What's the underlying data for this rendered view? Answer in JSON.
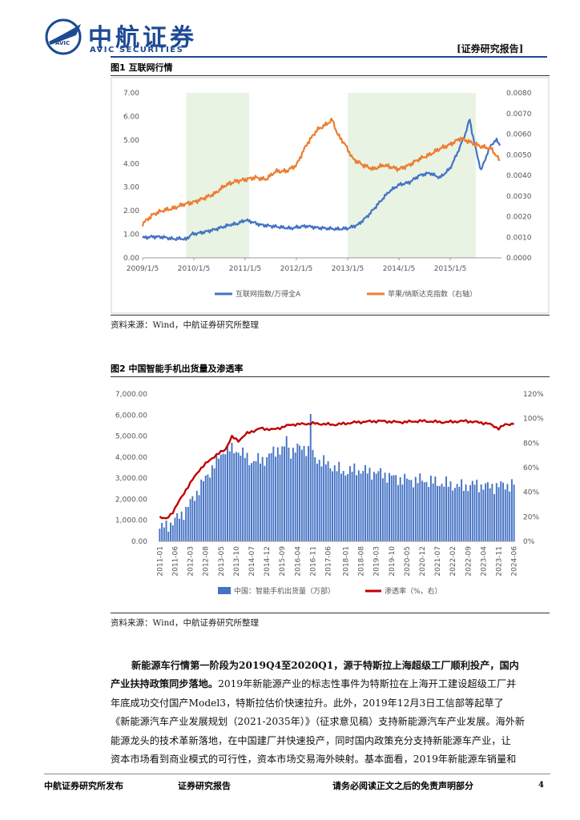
{
  "header": {
    "logo_cn": "中航证券",
    "logo_en": "AVIC SECURITIES",
    "badge": "AVIC",
    "report_type": "[证券研究报告]"
  },
  "figure1": {
    "title": "图1  互联网行情",
    "source": "资料来源：Wind，中航证券研究所整理",
    "chart_data": {
      "type": "line",
      "x_tick_labels": [
        "2009/1/5",
        "2010/1/5",
        "2011/1/5",
        "2012/1/5",
        "2013/1/5",
        "2014/1/5",
        "2015/1/5"
      ],
      "y_left_ticks": [
        "0.00",
        "1.00",
        "2.00",
        "3.00",
        "4.00",
        "5.00",
        "6.00",
        "7.00"
      ],
      "y_right_ticks": [
        "0.0000",
        "0.0010",
        "0.0020",
        "0.0030",
        "0.0040",
        "0.0050",
        "0.0060",
        "0.0070",
        "0.0080"
      ],
      "ylim_left": [
        0,
        7
      ],
      "ylim_right": [
        0,
        0.008
      ],
      "shaded_periods": [
        [
          "2009/11",
          "2011/1"
        ],
        [
          "2013/1",
          "2015/6"
        ]
      ],
      "series": [
        {
          "name": "互联网指数/万得全A",
          "axis": "left",
          "color": "#4472c4",
          "points": [
            [
              2009.0,
              0.85
            ],
            [
              2009.2,
              0.9
            ],
            [
              2009.4,
              0.88
            ],
            [
              2009.6,
              0.8
            ],
            [
              2009.75,
              0.82
            ],
            [
              2009.85,
              0.78
            ],
            [
              2009.95,
              1.0
            ],
            [
              2010.1,
              1.05
            ],
            [
              2010.25,
              1.12
            ],
            [
              2010.4,
              1.2
            ],
            [
              2010.55,
              1.3
            ],
            [
              2010.7,
              1.4
            ],
            [
              2010.85,
              1.45
            ],
            [
              2011.0,
              1.6
            ],
            [
              2011.1,
              1.55
            ],
            [
              2011.3,
              1.4
            ],
            [
              2011.5,
              1.35
            ],
            [
              2011.7,
              1.3
            ],
            [
              2011.9,
              1.25
            ],
            [
              2012.0,
              1.3
            ],
            [
              2012.2,
              1.35
            ],
            [
              2012.4,
              1.28
            ],
            [
              2012.6,
              1.25
            ],
            [
              2012.8,
              1.22
            ],
            [
              2013.0,
              1.25
            ],
            [
              2013.2,
              1.4
            ],
            [
              2013.4,
              1.8
            ],
            [
              2013.6,
              2.3
            ],
            [
              2013.8,
              2.8
            ],
            [
              2014.0,
              3.1
            ],
            [
              2014.2,
              3.2
            ],
            [
              2014.4,
              3.5
            ],
            [
              2014.6,
              3.6
            ],
            [
              2014.8,
              3.4
            ],
            [
              2015.0,
              3.8
            ],
            [
              2015.15,
              4.5
            ],
            [
              2015.3,
              5.3
            ],
            [
              2015.38,
              5.9
            ],
            [
              2015.42,
              5.4
            ],
            [
              2015.5,
              4.6
            ],
            [
              2015.6,
              3.7
            ],
            [
              2015.7,
              4.3
            ],
            [
              2015.8,
              4.8
            ],
            [
              2015.9,
              5.0
            ],
            [
              2015.97,
              4.8
            ]
          ]
        },
        {
          "name": "苹果/纳斯达克指数（右轴）",
          "axis": "right",
          "color": "#ed7d31",
          "points": [
            [
              2009.0,
              0.00165
            ],
            [
              2009.2,
              0.0021
            ],
            [
              2009.4,
              0.0023
            ],
            [
              2009.6,
              0.0024
            ],
            [
              2009.8,
              0.0026
            ],
            [
              2010.0,
              0.0027
            ],
            [
              2010.2,
              0.0029
            ],
            [
              2010.4,
              0.0031
            ],
            [
              2010.6,
              0.0035
            ],
            [
              2010.8,
              0.0037
            ],
            [
              2011.0,
              0.0038
            ],
            [
              2011.2,
              0.0039
            ],
            [
              2011.4,
              0.0038
            ],
            [
              2011.6,
              0.0042
            ],
            [
              2011.8,
              0.0042
            ],
            [
              2012.0,
              0.0045
            ],
            [
              2012.2,
              0.0055
            ],
            [
              2012.4,
              0.0062
            ],
            [
              2012.6,
              0.0065
            ],
            [
              2012.7,
              0.0067
            ],
            [
              2012.8,
              0.006
            ],
            [
              2012.95,
              0.0055
            ],
            [
              2013.1,
              0.0048
            ],
            [
              2013.3,
              0.0045
            ],
            [
              2013.5,
              0.0043
            ],
            [
              2013.7,
              0.0045
            ],
            [
              2014.0,
              0.0043
            ],
            [
              2014.2,
              0.0045
            ],
            [
              2014.4,
              0.0048
            ],
            [
              2014.6,
              0.005
            ],
            [
              2014.8,
              0.0053
            ],
            [
              2015.0,
              0.0055
            ],
            [
              2015.2,
              0.0058
            ],
            [
              2015.4,
              0.0056
            ],
            [
              2015.6,
              0.0054
            ],
            [
              2015.8,
              0.0053
            ],
            [
              2015.97,
              0.0047
            ]
          ]
        }
      ],
      "legend": "bottom"
    }
  },
  "figure2": {
    "title": "图2  中国智能手机出货量及渗透率",
    "source": "资料来源：Wind，中航证券研究所整理",
    "chart_data": {
      "type": "bar",
      "x_tick_labels": [
        "2011-01",
        "2012-03",
        "2013-05",
        "2014-07",
        "2015-09",
        "2016-11",
        "2018-01",
        "2019-03",
        "2020-05",
        "2021-07",
        "2022-09",
        "2023-11",
        "2011-06",
        "2012-08",
        "2013-10",
        "2014-12",
        "2016-04",
        "2017-06",
        "2018-08",
        "2019-10",
        "2020-12",
        "2022-02",
        "2023-04",
        "2024-06"
      ],
      "x_tick_order": [
        "2011-01",
        "2011-06",
        "2012-03",
        "2012-08",
        "2013-05",
        "2013-10",
        "2014-07",
        "2014-12",
        "2015-09",
        "2016-04",
        "2016-11",
        "2017-06",
        "2018-01",
        "2018-08",
        "2019-03",
        "2019-10",
        "2020-05",
        "2020-12",
        "2021-07",
        "2022-02",
        "2022-09",
        "2023-04",
        "2023-11",
        "2024-06"
      ],
      "y_left_ticks": [
        "0.00",
        "1,000.00",
        "2,000.00",
        "3,000.00",
        "4,000.00",
        "5,000.00",
        "6,000.00",
        "7,000.00"
      ],
      "y_right_ticks": [
        "0%",
        "20%",
        "40%",
        "60%",
        "80%",
        "100%",
        "120%"
      ],
      "ylim_left": [
        0,
        7000
      ],
      "ylim_right": [
        0,
        1.2
      ],
      "series": [
        {
          "name": "中国：智能手机出货量（万部）",
          "axis": "left",
          "color": "#4472c4",
          "profile": [
            [
              0,
              600
            ],
            [
              6,
              900
            ],
            [
              12,
              1500
            ],
            [
              18,
              2500
            ],
            [
              24,
              3500
            ],
            [
              30,
              4400
            ],
            [
              36,
              4300
            ],
            [
              42,
              3800
            ],
            [
              48,
              3900
            ],
            [
              54,
              4400
            ],
            [
              60,
              4300
            ],
            [
              66,
              4500
            ],
            [
              72,
              3900
            ],
            [
              78,
              3600
            ],
            [
              84,
              3300
            ],
            [
              90,
              3400
            ],
            [
              96,
              3300
            ],
            [
              102,
              3200
            ],
            [
              108,
              3000
            ],
            [
              114,
              2900
            ],
            [
              120,
              2900
            ],
            [
              126,
              2800
            ],
            [
              132,
              2700
            ],
            [
              138,
              2600
            ],
            [
              144,
              2700
            ],
            [
              150,
              2600
            ],
            [
              162,
              2700
            ]
          ]
        },
        {
          "name": "渗透率（%，右）",
          "axis": "right",
          "color": "#c00000",
          "profile": [
            [
              0,
              0.2
            ],
            [
              3,
              0.18
            ],
            [
              6,
              0.24
            ],
            [
              12,
              0.42
            ],
            [
              18,
              0.58
            ],
            [
              24,
              0.68
            ],
            [
              30,
              0.75
            ],
            [
              33,
              0.85
            ],
            [
              36,
              0.82
            ],
            [
              40,
              0.88
            ],
            [
              46,
              0.92
            ],
            [
              52,
              0.91
            ],
            [
              60,
              0.95
            ],
            [
              70,
              0.96
            ],
            [
              80,
              0.95
            ],
            [
              90,
              0.97
            ],
            [
              100,
              0.98
            ],
            [
              110,
              0.97
            ],
            [
              120,
              0.98
            ],
            [
              130,
              0.97
            ],
            [
              140,
              0.98
            ],
            [
              150,
              0.96
            ],
            [
              155,
              0.92
            ],
            [
              158,
              0.95
            ],
            [
              162,
              0.96
            ]
          ]
        }
      ],
      "legend": "bottom"
    }
  },
  "body": {
    "para_lead": "新能源车行情第一阶段为2019Q4至2020Q1，源于特斯拉上海超级工厂顺利投产，国内产业扶持政策同步落地。",
    "para_rest": "2019年新能源产业的标志性事件为特斯拉在上海开工建设超级工厂并年底成功交付国产Model3，特斯拉估价快速拉升。此外，2019年12月3日工信部等起草了《新能源汽车产业发展规划（2021-2035年）》（征求意见稿）支持新能源汽车产业发展。海外新能源龙头的技术革新落地，在中国建厂并快速投产，同时国内政策充分支持新能源车产业，让资本市场看到商业模式的可行性，资本市场交易海外映射。基本面看，2019年新能源车销量和",
    "lines": [
      [
        "新能源车行情第一阶段为2019Q4至2020Q1，源于特斯拉上海超级工厂顺利投产，国内",
        true
      ],
      [
        "产业扶持政策同步落地。",
        true,
        "2019年新能源产业的标志性事件为特斯拉在上海开工建设超级工厂并"
      ],
      [
        "年底成功交付国产Model3，特斯拉估价快速拉升。此外，2019年12月3日工信部等起草了",
        false
      ],
      [
        "《新能源汽车产业发展规划（2021-2035年）》（征求意见稿）支持新能源汽车产业发展。海外新",
        false
      ],
      [
        "能源龙头的技术革新落地，在中国建厂并快速投产，同时国内政策充分支持新能源车产业，让",
        false
      ],
      [
        "资本市场看到商业模式的可行性，资本市场交易海外映射。基本面看，2019年新能源车销量和",
        false
      ]
    ]
  },
  "footer": {
    "left": "中航证券研究所发布",
    "center": "证券研究报告",
    "right": "请务必阅读正文之后的免责声明部分",
    "page": "4"
  }
}
